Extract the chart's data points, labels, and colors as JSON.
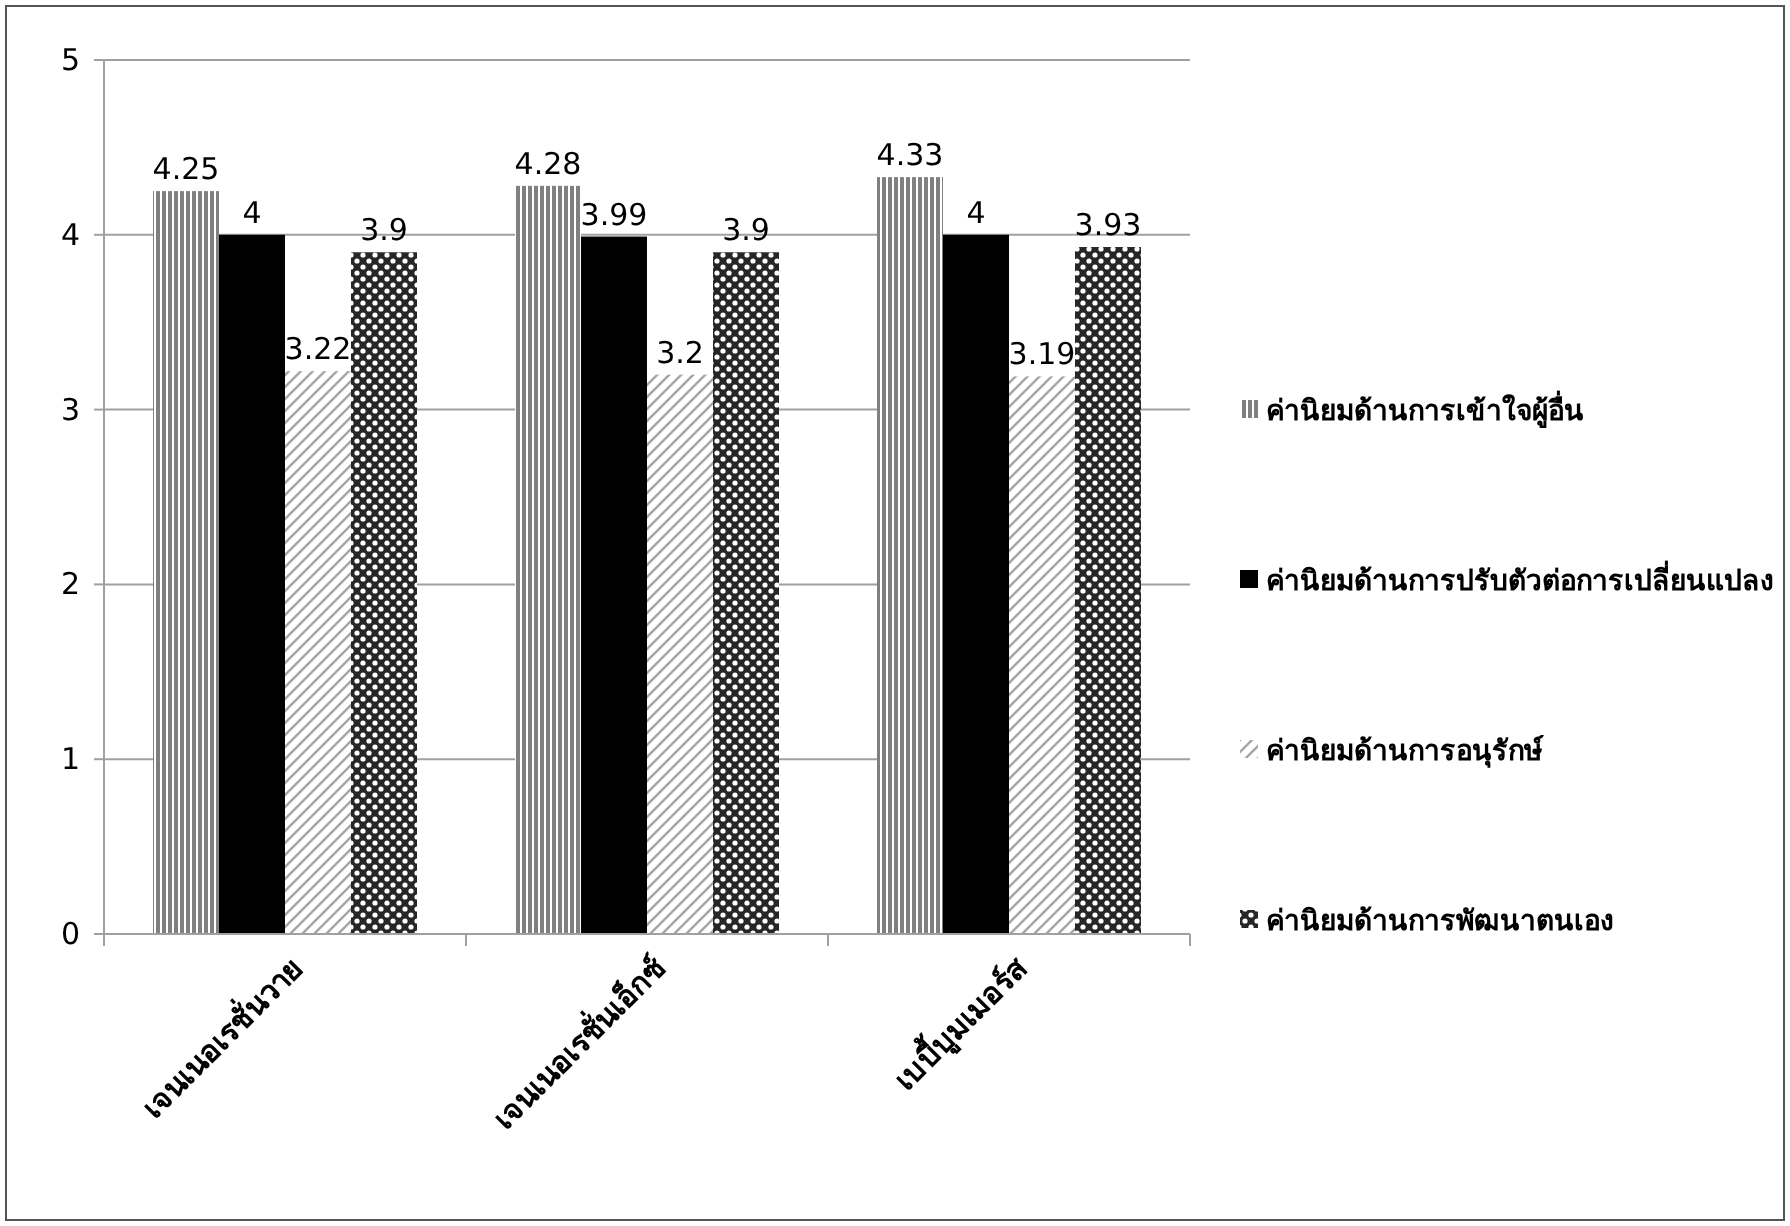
{
  "chart_data": {
    "type": "bar",
    "categories": [
      "เจนเนอเรชั่นวาย",
      "เจนเนอเรชั่นเอ็กซ์",
      "เบบี้บูมเมอร์ส"
    ],
    "series": [
      {
        "name": "ค่านิยมด้านการเข้าใจผู้อื่น",
        "color": "#808080",
        "values": [
          4.25,
          4.28,
          4.33
        ]
      },
      {
        "name": "ค่านิยมด้านการปรับตัวต่อการเปลี่ยนแปลง",
        "color": "#000000",
        "values": [
          4,
          3.99,
          4
        ]
      },
      {
        "name": "ค่านิยมด้านการอนุรักษ์",
        "color": "#a6a6a6",
        "values": [
          3.22,
          3.2,
          3.19
        ]
      },
      {
        "name": "ค่านิยมด้านการพัฒนาตนเอง",
        "color": "#262626",
        "values": [
          3.9,
          3.9,
          3.93
        ]
      }
    ],
    "ylim": [
      0,
      5
    ],
    "yticks": [
      0,
      1,
      2,
      3,
      4,
      5
    ],
    "grid": "y",
    "legend": "right",
    "data_labels": true
  }
}
